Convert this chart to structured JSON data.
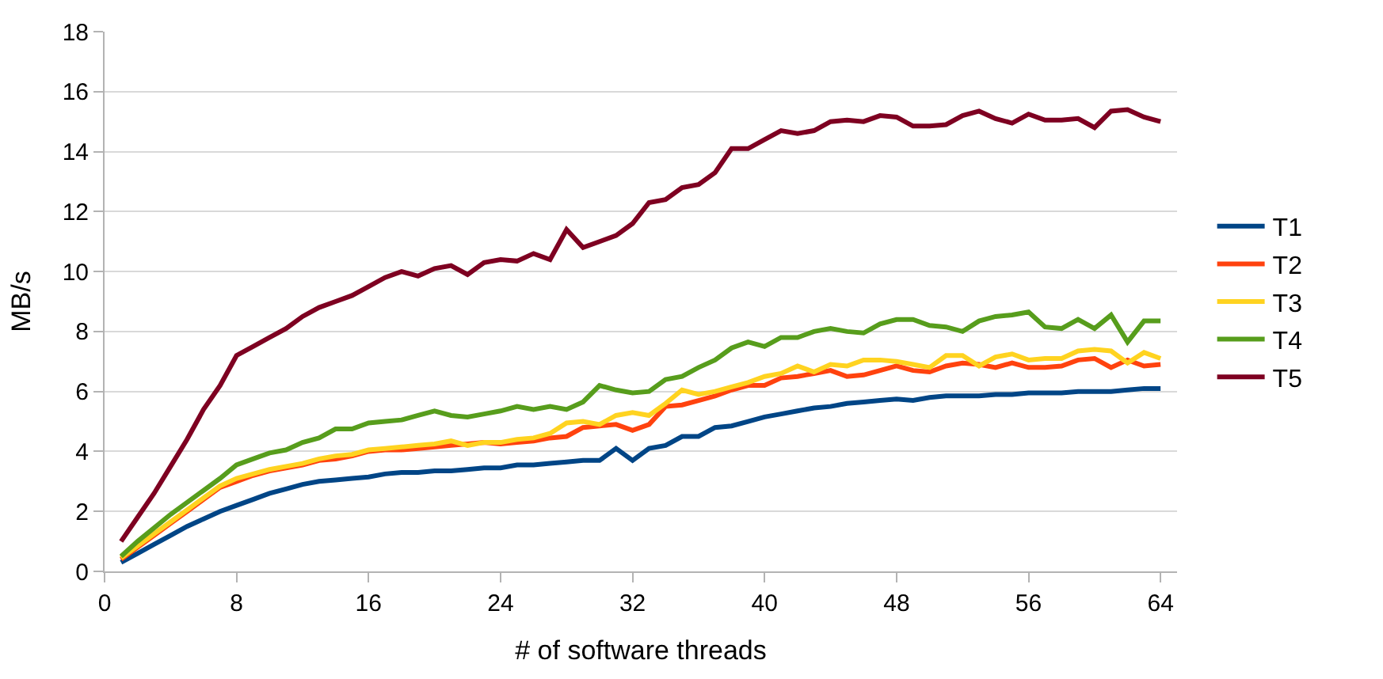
{
  "chart_data": {
    "type": "line",
    "xlabel": "# of software threads",
    "ylabel": "MB/s",
    "x": [
      1,
      2,
      3,
      4,
      5,
      6,
      7,
      8,
      9,
      10,
      11,
      12,
      13,
      14,
      15,
      16,
      17,
      18,
      19,
      20,
      21,
      22,
      23,
      24,
      25,
      26,
      27,
      28,
      29,
      30,
      31,
      32,
      33,
      34,
      35,
      36,
      37,
      38,
      39,
      40,
      41,
      42,
      43,
      44,
      45,
      46,
      47,
      48,
      49,
      50,
      51,
      52,
      53,
      54,
      55,
      56,
      57,
      58,
      59,
      60,
      61,
      62,
      63,
      64
    ],
    "series": [
      {
        "name": "T1",
        "color": "#004586",
        "values": [
          0.3,
          0.6,
          0.9,
          1.2,
          1.5,
          1.75,
          2.0,
          2.2,
          2.4,
          2.6,
          2.75,
          2.9,
          3.0,
          3.05,
          3.1,
          3.15,
          3.25,
          3.3,
          3.3,
          3.35,
          3.35,
          3.4,
          3.45,
          3.45,
          3.55,
          3.55,
          3.6,
          3.65,
          3.7,
          3.7,
          4.1,
          3.7,
          4.1,
          4.2,
          4.5,
          4.5,
          4.8,
          4.85,
          5.0,
          5.15,
          5.25,
          5.35,
          5.45,
          5.5,
          5.6,
          5.65,
          5.7,
          5.75,
          5.7,
          5.8,
          5.85,
          5.85,
          5.85,
          5.9,
          5.9,
          5.95,
          5.95,
          5.95,
          6.0,
          6.0,
          6.0,
          6.05,
          6.1,
          6.1
        ]
      },
      {
        "name": "T2",
        "color": "#ff420e",
        "values": [
          0.4,
          0.8,
          1.2,
          1.6,
          2.0,
          2.4,
          2.8,
          3.0,
          3.2,
          3.35,
          3.45,
          3.55,
          3.7,
          3.75,
          3.85,
          4.0,
          4.05,
          4.05,
          4.1,
          4.15,
          4.2,
          4.25,
          4.3,
          4.25,
          4.3,
          4.35,
          4.45,
          4.5,
          4.8,
          4.85,
          4.9,
          4.7,
          4.9,
          5.5,
          5.55,
          5.7,
          5.85,
          6.05,
          6.2,
          6.2,
          6.45,
          6.5,
          6.6,
          6.7,
          6.5,
          6.55,
          6.7,
          6.85,
          6.7,
          6.65,
          6.85,
          6.95,
          6.9,
          6.8,
          6.95,
          6.8,
          6.8,
          6.85,
          7.05,
          7.1,
          6.8,
          7.05,
          6.85,
          6.9
        ]
      },
      {
        "name": "T3",
        "color": "#ffd320",
        "values": [
          0.45,
          0.85,
          1.25,
          1.65,
          2.05,
          2.45,
          2.85,
          3.1,
          3.25,
          3.4,
          3.5,
          3.6,
          3.75,
          3.85,
          3.9,
          4.05,
          4.1,
          4.15,
          4.2,
          4.25,
          4.35,
          4.2,
          4.3,
          4.3,
          4.4,
          4.45,
          4.6,
          4.95,
          5.0,
          4.9,
          5.2,
          5.3,
          5.2,
          5.6,
          6.05,
          5.9,
          6.0,
          6.15,
          6.3,
          6.5,
          6.6,
          6.85,
          6.65,
          6.9,
          6.85,
          7.05,
          7.05,
          7.0,
          6.9,
          6.8,
          7.2,
          7.2,
          6.85,
          7.15,
          7.25,
          7.05,
          7.1,
          7.1,
          7.35,
          7.4,
          7.35,
          6.95,
          7.3,
          7.1
        ]
      },
      {
        "name": "T4",
        "color": "#579d1c",
        "values": [
          0.5,
          1.0,
          1.45,
          1.9,
          2.3,
          2.7,
          3.1,
          3.55,
          3.75,
          3.95,
          4.05,
          4.3,
          4.45,
          4.75,
          4.75,
          4.95,
          5.0,
          5.05,
          5.2,
          5.35,
          5.2,
          5.15,
          5.25,
          5.35,
          5.5,
          5.4,
          5.5,
          5.4,
          5.65,
          6.2,
          6.05,
          5.95,
          6.0,
          6.4,
          6.5,
          6.8,
          7.05,
          7.45,
          7.65,
          7.5,
          7.8,
          7.8,
          8.0,
          8.1,
          8.0,
          7.95,
          8.25,
          8.4,
          8.4,
          8.2,
          8.15,
          8.0,
          8.35,
          8.5,
          8.55,
          8.65,
          8.15,
          8.1,
          8.4,
          8.1,
          8.55,
          7.65,
          8.35,
          8.35
        ]
      },
      {
        "name": "T5",
        "color": "#7e0021",
        "values": [
          1.0,
          1.8,
          2.6,
          3.5,
          4.4,
          5.4,
          6.2,
          7.2,
          7.5,
          7.8,
          8.1,
          8.5,
          8.8,
          9.0,
          9.2,
          9.5,
          9.8,
          10.0,
          9.85,
          10.1,
          10.2,
          9.9,
          10.3,
          10.4,
          10.35,
          10.6,
          10.4,
          11.4,
          10.8,
          11.0,
          11.2,
          11.6,
          12.3,
          12.4,
          12.8,
          12.9,
          13.3,
          14.1,
          14.1,
          14.4,
          14.7,
          14.6,
          14.7,
          15.0,
          15.05,
          15.0,
          15.2,
          15.15,
          14.85,
          14.85,
          14.9,
          15.2,
          15.35,
          15.1,
          14.95,
          15.25,
          15.05,
          15.05,
          15.1,
          14.8,
          15.35,
          15.4,
          15.15,
          15.0
        ]
      }
    ],
    "xlim": [
      0,
      65
    ],
    "xticks": [
      0,
      8,
      16,
      24,
      32,
      40,
      48,
      56,
      64
    ],
    "ylim": [
      0,
      18
    ],
    "yticks": [
      0,
      2,
      4,
      6,
      8,
      10,
      12,
      14,
      16,
      18
    ],
    "grid": "y",
    "legend": "right",
    "marker": "none",
    "line_style": "solid"
  }
}
